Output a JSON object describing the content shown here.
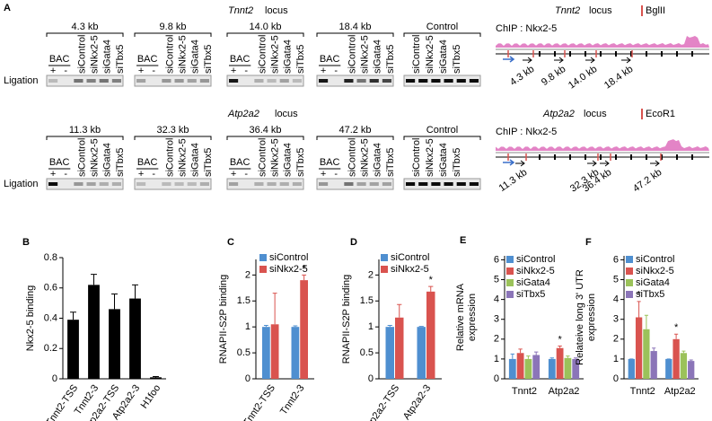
{
  "gel_panel": {
    "label": "A",
    "rows": [
      {
        "gene": "Tnnt2",
        "word": "locus",
        "groups": [
          "4.3 kb",
          "9.8 kb",
          "14.0 kb",
          "18.4 kb",
          "Control"
        ],
        "lanes": [
          "siControl",
          "siNkx2-5",
          "siGata4",
          "siTbx5"
        ],
        "bac": "BAC",
        "plus": "+",
        "minus": "-",
        "ligation": "Ligation",
        "track": {
          "gene": "Tnnt2",
          "word": "locus",
          "site": "BglII",
          "chip": "ChIP : Nkx2-5",
          "distances": [
            "4.3 kb",
            "9.8 kb",
            "14.0 kb",
            "18.4 kb"
          ]
        }
      },
      {
        "gene": "Atp2a2",
        "word": "locus",
        "groups": [
          "11.3 kb",
          "32.3 kb",
          "36.4 kb",
          "47.2 kb",
          "Control"
        ],
        "lanes": [
          "siControl",
          "siNkx2-5",
          "siGata4",
          "siTbx5"
        ],
        "bac": "BAC",
        "plus": "+",
        "minus": "-",
        "ligation": "Ligation",
        "track": {
          "gene": "Atp2a2",
          "word": "locus",
          "site": "EcoR1",
          "chip": "ChIP : Nkx2-5",
          "distances": [
            "11.3 kb",
            "32.3 kb",
            "36.4 kb",
            "47.2 kb"
          ]
        }
      }
    ]
  },
  "chart_data": [
    {
      "type": "bar",
      "panel_label": "B",
      "ylabel": "Nkx2-5 binding",
      "categories": [
        "Tnnt2-TSS",
        "Tnnt2-3",
        "Atp2a2-TSS",
        "Atp2a2-3",
        "H1foo"
      ],
      "series": [
        {
          "color": "#000000",
          "values": [
            0.39,
            0.62,
            0.46,
            0.53,
            0.01
          ],
          "errors": [
            0.05,
            0.07,
            0.1,
            0.09,
            0.005
          ]
        }
      ],
      "ylim": [
        0,
        0.8
      ],
      "yticks": [
        0,
        0.2,
        0.4,
        0.6,
        0.8
      ],
      "rotate_labels": true
    },
    {
      "type": "bar",
      "panel_label": "C",
      "ylabel": "RNAPII-S2P binding",
      "categories": [
        "Tnnt2-TSS",
        "Tnnt2-3"
      ],
      "series": [
        {
          "name": "siControl",
          "color": "#4f8fd0",
          "values": [
            1.0,
            1.0
          ],
          "errors": [
            0.03,
            0.02
          ]
        },
        {
          "name": "siNkx2-5",
          "color": "#d9534f",
          "values": [
            1.05,
            1.9
          ],
          "errors": [
            0.6,
            0.1
          ]
        }
      ],
      "annotations": [
        {
          "text": "*",
          "series": 1,
          "category": 1
        }
      ],
      "ylim": [
        0,
        2.3
      ],
      "yticks": [
        0,
        0.5,
        1,
        1.5,
        2
      ],
      "rotate_labels": true
    },
    {
      "type": "bar",
      "panel_label": "D",
      "ylabel": "RNAPII-S2P binding",
      "categories": [
        "Atp2a2-TSS",
        "Atp2a2-3"
      ],
      "series": [
        {
          "name": "siControl",
          "color": "#4f8fd0",
          "values": [
            1.0,
            1.0
          ],
          "errors": [
            0.03,
            0.01
          ]
        },
        {
          "name": "siNkx2-5",
          "color": "#d9534f",
          "values": [
            1.18,
            1.68
          ],
          "errors": [
            0.25,
            0.1
          ]
        }
      ],
      "annotations": [
        {
          "text": "*",
          "series": 1,
          "category": 1
        }
      ],
      "ylim": [
        0,
        2.3
      ],
      "yticks": [
        0,
        0.5,
        1,
        1.5,
        2
      ],
      "rotate_labels": true
    },
    {
      "type": "bar",
      "panel_label": "E",
      "ylabel": [
        "Relative mRNA",
        "expression"
      ],
      "categories": [
        "Tnnt2",
        "Atp2a2"
      ],
      "series": [
        {
          "name": "siControl",
          "color": "#4f8fd0",
          "values": [
            1.0,
            1.0
          ],
          "errors": [
            0.25,
            0.05
          ]
        },
        {
          "name": "siNkx2-5",
          "color": "#d9534f",
          "values": [
            1.3,
            1.55
          ],
          "errors": [
            0.2,
            0.1
          ]
        },
        {
          "name": "siGata4",
          "color": "#9bc25a",
          "values": [
            1.0,
            1.05
          ],
          "errors": [
            0.15,
            0.1
          ]
        },
        {
          "name": "siTbx5",
          "color": "#8b75b8",
          "values": [
            1.2,
            1.0
          ],
          "errors": [
            0.15,
            0.05
          ]
        }
      ],
      "annotations": [
        {
          "text": "*",
          "series": 1,
          "category": 1
        }
      ],
      "ylim": [
        0,
        6.2
      ],
      "yticks": [
        0,
        1,
        2,
        3,
        4,
        5,
        6
      ],
      "rotate_labels": false
    },
    {
      "type": "bar",
      "panel_label": "F",
      "ylabel": [
        "Relateive long 3' UTR",
        "expression"
      ],
      "categories": [
        "Tnnt2",
        "Atp2a2"
      ],
      "series": [
        {
          "name": "siControl",
          "color": "#4f8fd0",
          "values": [
            1.0,
            1.0
          ],
          "errors": [
            0.0,
            0.0
          ]
        },
        {
          "name": "siNkx2-5",
          "color": "#d9534f",
          "values": [
            3.1,
            2.0
          ],
          "errors": [
            0.8,
            0.25
          ]
        },
        {
          "name": "siGata4",
          "color": "#9bc25a",
          "values": [
            2.5,
            1.3
          ],
          "errors": [
            0.7,
            0.1
          ]
        },
        {
          "name": "siTbx5",
          "color": "#8b75b8",
          "values": [
            1.4,
            0.9
          ],
          "errors": [
            0.15,
            0.05
          ]
        }
      ],
      "annotations": [
        {
          "text": "*",
          "series": 1,
          "category": 0
        },
        {
          "text": "*",
          "series": 1,
          "category": 1
        }
      ],
      "ylim": [
        0,
        6.2
      ],
      "yticks": [
        0,
        1,
        2,
        3,
        4,
        5,
        6
      ],
      "rotate_labels": false
    }
  ]
}
